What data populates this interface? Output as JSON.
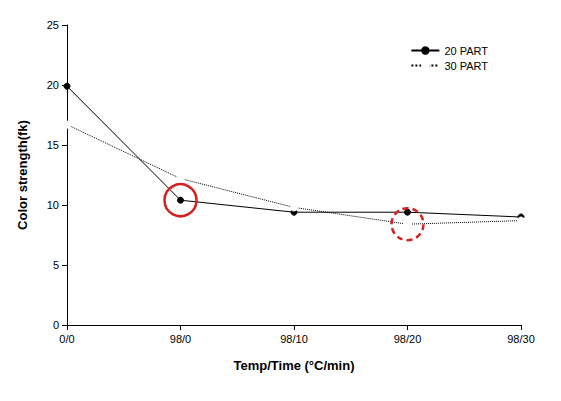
{
  "chart_data": {
    "type": "line",
    "x_label": "Temp/Time (°C/min)",
    "y_label": "Color strength(fk)",
    "categories": [
      "0/0",
      "98/0",
      "98/10",
      "98/20",
      "98/30"
    ],
    "series": [
      {
        "name": "20 PART",
        "color": "#000000",
        "marker": "circle",
        "line_style": "solid",
        "values": [
          19.9,
          10.4,
          9.4,
          9.4,
          9.0
        ]
      },
      {
        "name": "30 PART",
        "color": "#000000",
        "marker": "open_circle",
        "line_style": "dotted",
        "values": [
          16.7,
          12.2,
          9.8,
          8.4,
          8.7
        ]
      }
    ],
    "ylim": [
      0,
      25
    ],
    "yticks": [
      0,
      5,
      10,
      15,
      20,
      25
    ],
    "legend": "upper right",
    "grid": false
  }
}
